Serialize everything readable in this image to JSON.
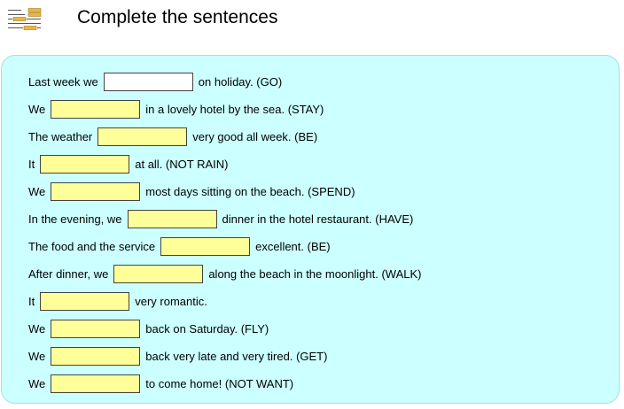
{
  "header": {
    "title": "Complete the sentences",
    "icon": "worksheet-lines-icon"
  },
  "colors": {
    "panel_background": "#ccffff",
    "panel_border": "#a9dede",
    "blank_fill": "#ffff99",
    "active_blank_fill": "#ffffff",
    "icon_accent": "#f0b43c",
    "icon_lines": "#555555"
  },
  "exercise": {
    "rows": [
      {
        "before": "Last week we",
        "after": "on holiday. (GO)",
        "value": "",
        "active": true
      },
      {
        "before": "We",
        "after": "in a lovely hotel by the sea. (STAY)",
        "value": "",
        "active": false
      },
      {
        "before": "The weather",
        "after": "very good all week. (BE)",
        "value": "",
        "active": false
      },
      {
        "before": "It",
        "after": "at all. (NOT RAIN)",
        "value": "",
        "active": false
      },
      {
        "before": "We",
        "after": "most days sitting on the beach. (SPEND)",
        "value": "",
        "active": false
      },
      {
        "before": "In the evening, we",
        "after": "dinner in the hotel restaurant. (HAVE)",
        "value": "",
        "active": false
      },
      {
        "before": "The food and the service",
        "after": "excellent. (BE)",
        "value": "",
        "active": false
      },
      {
        "before": "After dinner, we",
        "after": "along the beach in the moonlight. (WALK)",
        "value": "",
        "active": false
      },
      {
        "before": "It",
        "after": "very romantic.",
        "value": "",
        "active": false
      },
      {
        "before": "We",
        "after": "back on Saturday. (FLY)",
        "value": "",
        "active": false
      },
      {
        "before": "We",
        "after": "back very late and very tired. (GET)",
        "value": "",
        "active": false
      },
      {
        "before": "We",
        "after": "to come home! (NOT WANT)",
        "value": "",
        "active": false
      }
    ]
  }
}
